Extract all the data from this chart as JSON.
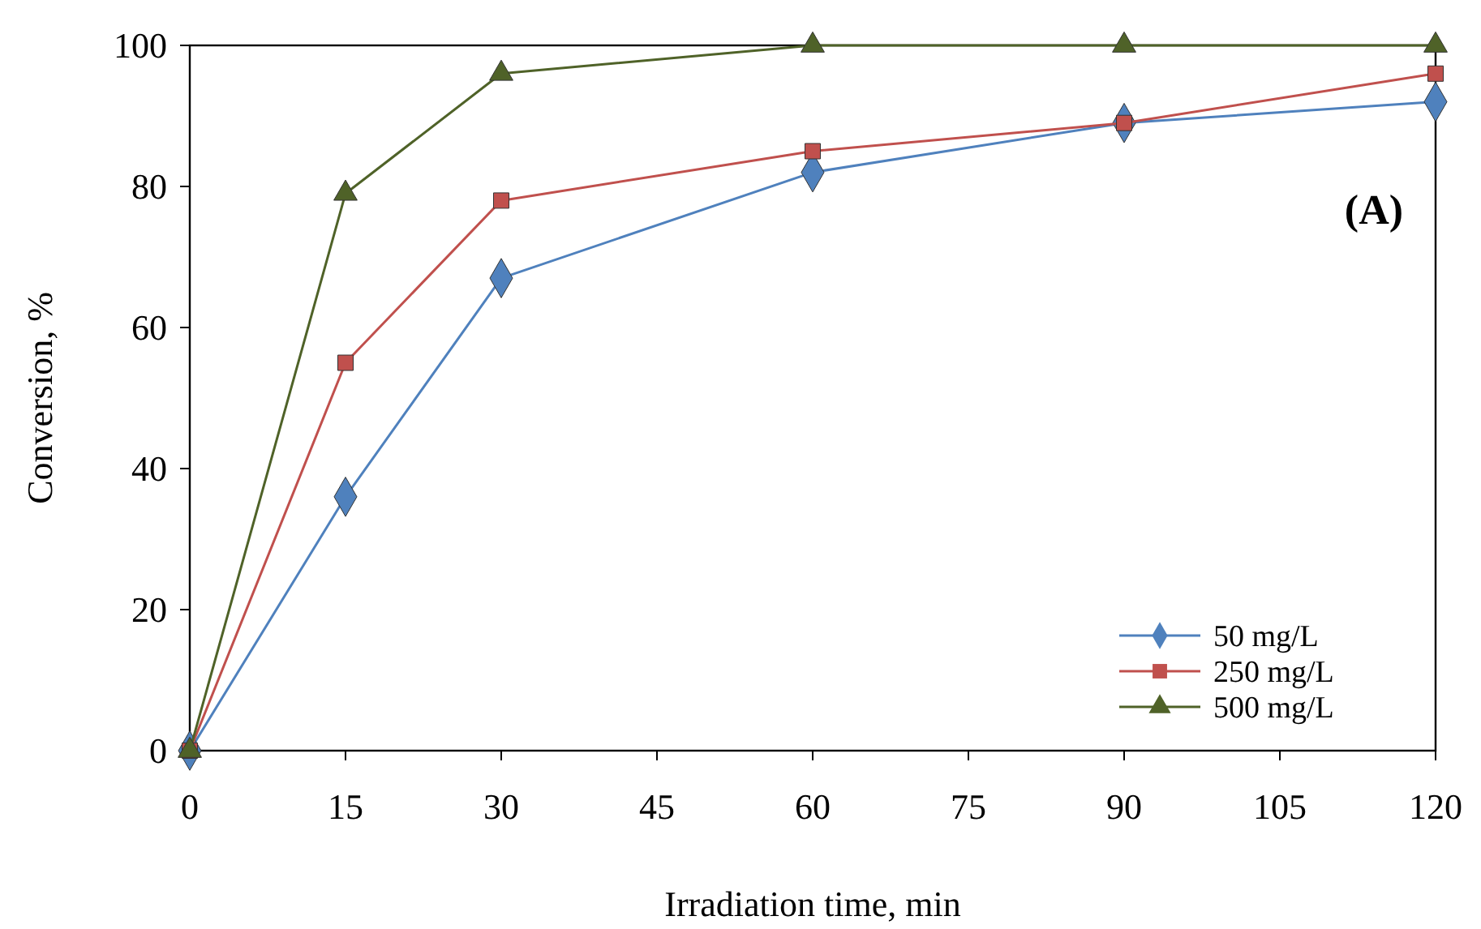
{
  "chart_data": {
    "type": "line",
    "xlabel": "Irradiation time, min",
    "ylabel": "Conversion, %",
    "x": [
      0,
      15,
      30,
      60,
      90,
      120
    ],
    "xlim": [
      0,
      120
    ],
    "xticks": [
      0,
      15,
      30,
      45,
      60,
      75,
      90,
      105,
      120
    ],
    "ylim": [
      0,
      100
    ],
    "yticks": [
      0,
      20,
      40,
      60,
      80,
      100
    ],
    "series": [
      {
        "name": "50 mg/L",
        "color": "#4f81bd",
        "marker": "diamond",
        "values": [
          0,
          36,
          67,
          82,
          89,
          92
        ]
      },
      {
        "name": "250 mg/L",
        "color": "#c0504d",
        "marker": "square",
        "values": [
          0,
          55,
          78,
          85,
          89,
          96
        ]
      },
      {
        "name": "500 mg/L",
        "color": "#4f6228",
        "marker": "triangle",
        "values": [
          0,
          79,
          96,
          100,
          100,
          100
        ]
      }
    ],
    "annotations": [
      "(A)"
    ],
    "grid": false,
    "legend": "bottom right"
  }
}
